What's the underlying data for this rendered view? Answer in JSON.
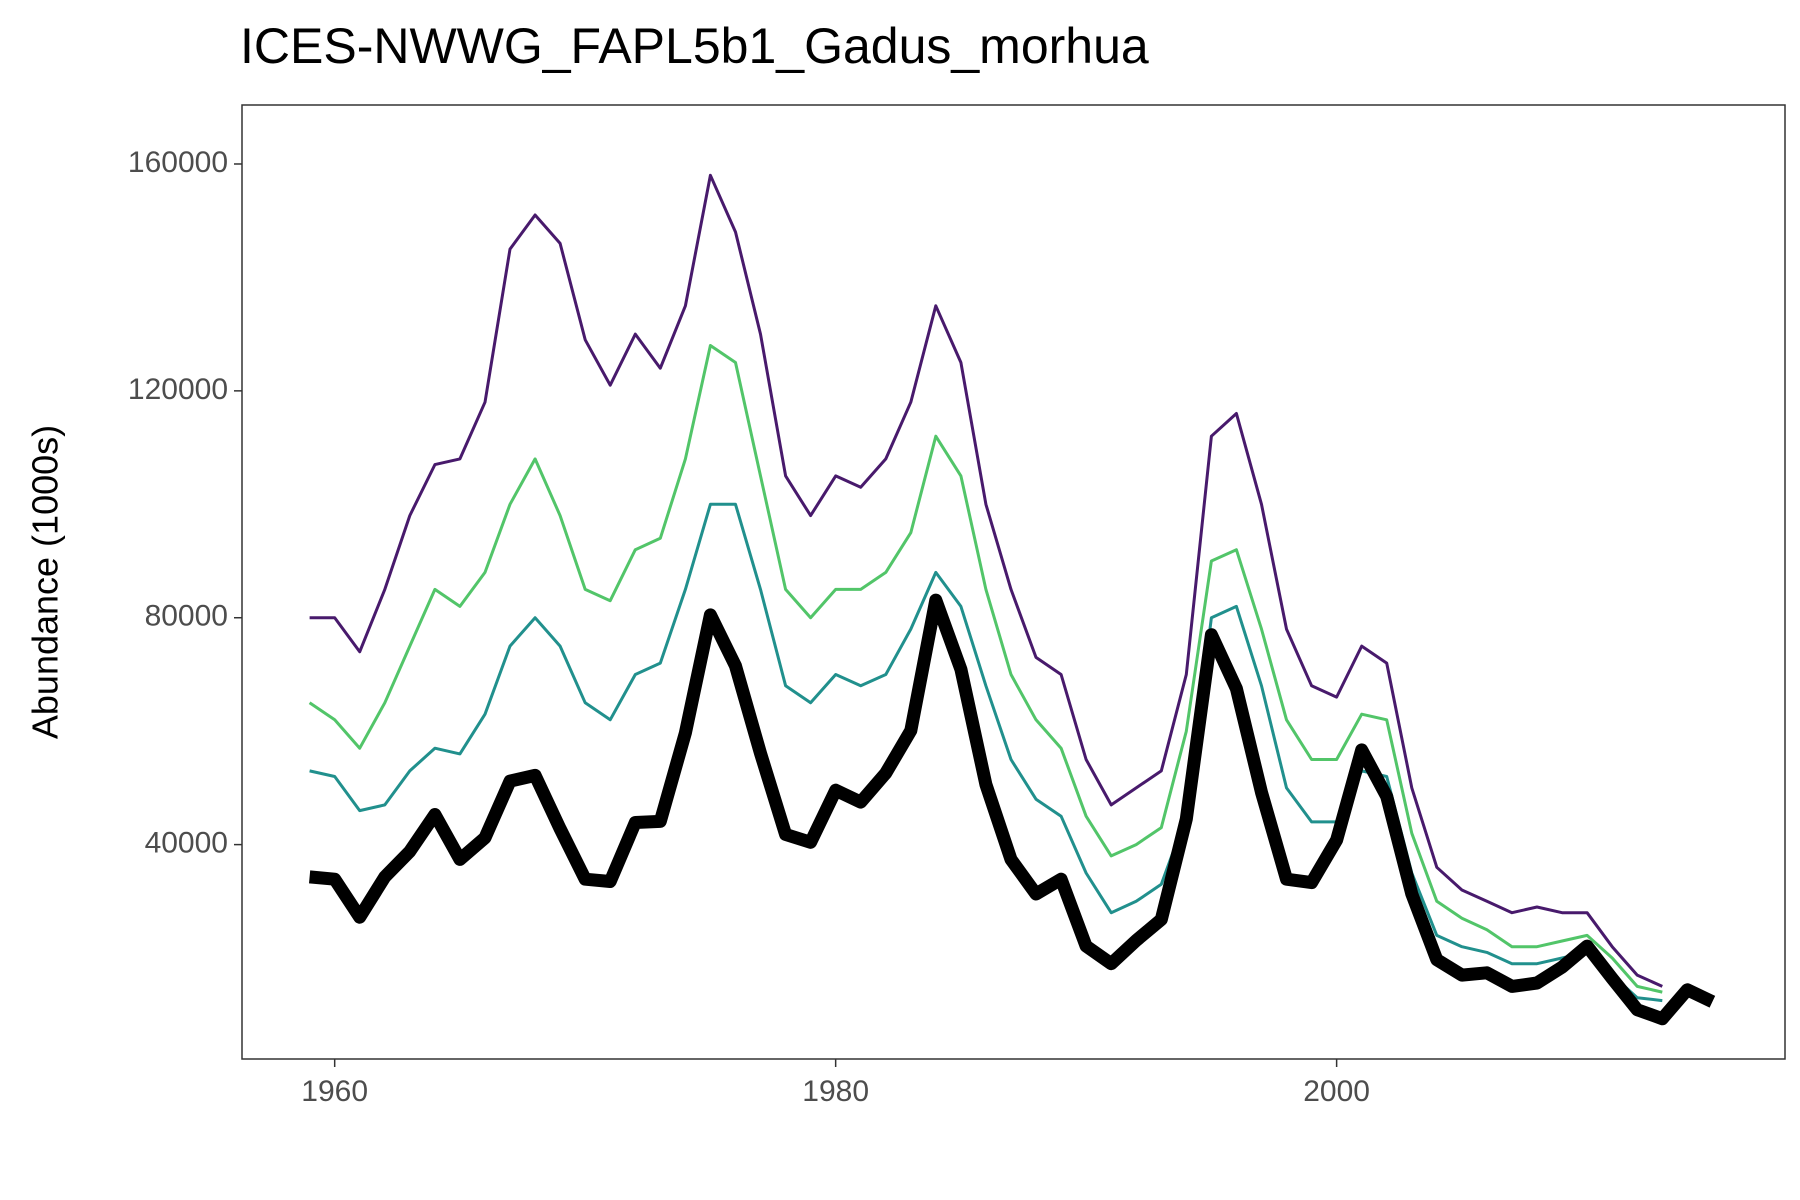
{
  "chart_data": {
    "type": "line",
    "title": "ICES-NWWG_FAPL5b1_Gadus_morhua",
    "y_label": "Abundance (1000s)",
    "x": [
      1959,
      1960,
      1961,
      1962,
      1963,
      1964,
      1965,
      1966,
      1967,
      1968,
      1969,
      1970,
      1971,
      1972,
      1973,
      1974,
      1975,
      1976,
      1977,
      1978,
      1979,
      1980,
      1981,
      1982,
      1983,
      1984,
      1985,
      1986,
      1987,
      1988,
      1989,
      1990,
      1991,
      1992,
      1993,
      1994,
      1995,
      1996,
      1997,
      1998,
      1999,
      2000,
      2001,
      2002,
      2003,
      2004,
      2005,
      2006,
      2007,
      2008,
      2009,
      2010,
      2011,
      2012,
      2013,
      2014,
      2015
    ],
    "series": [
      {
        "color": "#481a6c",
        "values": [
          80000,
          80000,
          74000,
          85000,
          98000,
          107000,
          108000,
          118000,
          145000,
          151000,
          146000,
          129000,
          121000,
          130000,
          124000,
          135000,
          158000,
          148000,
          130000,
          105000,
          98000,
          105000,
          103000,
          108000,
          118000,
          135000,
          125000,
          100000,
          85000,
          73000,
          70000,
          55000,
          47000,
          50000,
          53000,
          70000,
          112000,
          116000,
          100000,
          78000,
          68000,
          66000,
          75000,
          72000,
          50000,
          36000,
          32000,
          30000,
          28000,
          29000,
          28000,
          28000,
          22000,
          17000,
          15000,
          null,
          null
        ]
      },
      {
        "color": "#21908d",
        "values": [
          53000,
          52000,
          46000,
          47000,
          53000,
          57000,
          56000,
          63000,
          75000,
          80000,
          75000,
          65000,
          62000,
          70000,
          72000,
          85000,
          100000,
          100000,
          85000,
          68000,
          65000,
          70000,
          68000,
          70000,
          78000,
          88000,
          82000,
          68000,
          55000,
          48000,
          45000,
          35000,
          28000,
          30000,
          33000,
          45000,
          80000,
          82000,
          68000,
          50000,
          44000,
          44000,
          53000,
          52000,
          35000,
          24000,
          22000,
          21000,
          19000,
          19000,
          20000,
          21000,
          17000,
          13000,
          12500,
          null,
          null
        ]
      },
      {
        "color": "#52c569",
        "values": [
          65000,
          62000,
          57000,
          65000,
          75000,
          85000,
          82000,
          88000,
          100000,
          108000,
          98000,
          85000,
          83000,
          92000,
          94000,
          108000,
          128000,
          125000,
          105000,
          85000,
          80000,
          85000,
          85000,
          88000,
          95000,
          112000,
          105000,
          85000,
          70000,
          62000,
          57000,
          45000,
          38000,
          40000,
          43000,
          60000,
          90000,
          92000,
          78000,
          62000,
          55000,
          55000,
          63000,
          62000,
          42000,
          30000,
          27000,
          25000,
          22000,
          22000,
          23000,
          24000,
          20000,
          15000,
          14000,
          null,
          null
        ]
      },
      {
        "color": "#000000",
        "values": [
          34300,
          33900,
          27200,
          34300,
          38800,
          45300,
          37400,
          41200,
          51200,
          52200,
          42800,
          33900,
          33500,
          43900,
          44100,
          59700,
          80500,
          71500,
          56100,
          41800,
          40400,
          49600,
          47500,
          52600,
          60100,
          83100,
          70900,
          50600,
          37400,
          31300,
          33900,
          22100,
          19000,
          23100,
          26800,
          44500,
          77000,
          67500,
          49200,
          33900,
          33300,
          40800,
          56700,
          48500,
          31300,
          19700,
          17000,
          17400,
          15000,
          15600,
          18400,
          22100,
          16400,
          10900,
          9300,
          14400,
          12300
        ]
      }
    ],
    "xlim": [
      1956.3,
      2017.9
    ],
    "xticks": [
      1960,
      1980,
      2000
    ],
    "ylim": [
      2200,
      170400
    ],
    "yticks": [
      40000,
      80000,
      120000,
      160000
    ],
    "grid": false
  }
}
